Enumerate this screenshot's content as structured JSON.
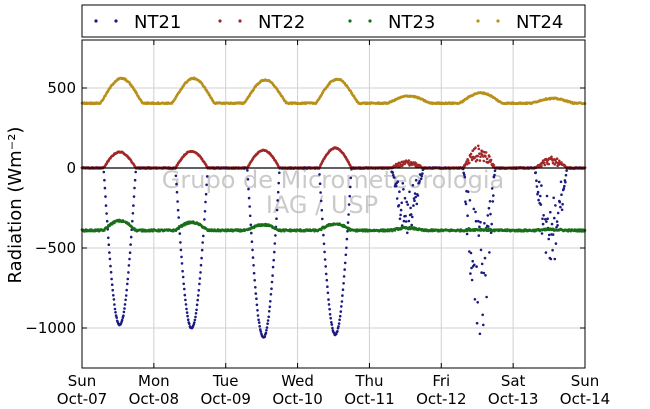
{
  "chart_data": {
    "type": "scatter",
    "ylabel": "Radiation (Wm⁻²)",
    "ylim": [
      -1250,
      800
    ],
    "yticks": [
      {
        "value": 500,
        "label": "500"
      },
      {
        "value": 0,
        "label": "0"
      },
      {
        "value": -500,
        "label": "−500"
      },
      {
        "value": -1000,
        "label": "−1000"
      }
    ],
    "xlim": [
      "2012-10-07",
      "2012-10-14"
    ],
    "xticks": [
      {
        "day": "Sun",
        "date": "Oct-07"
      },
      {
        "day": "Mon",
        "date": "Oct-08"
      },
      {
        "day": "Tue",
        "date": "Oct-09"
      },
      {
        "day": "Wed",
        "date": "Oct-10"
      },
      {
        "day": "Thu",
        "date": "Oct-11"
      },
      {
        "day": "Fri",
        "date": "Oct-12"
      },
      {
        "day": "Sat",
        "date": "Oct-13"
      },
      {
        "day": "Sun",
        "date": "Oct-14"
      }
    ],
    "grid": true,
    "legend_position": "top",
    "watermark": [
      "Grupo de Micrometeorologia",
      "IAG / USP"
    ],
    "series": [
      {
        "name": "NT21",
        "color": "#1a1a80",
        "baseline": 0,
        "daily_peak": [
          -980,
          -1000,
          -1060,
          -1040,
          -420,
          -1110,
          -640
        ]
      },
      {
        "name": "NT22",
        "color": "#a02828",
        "baseline": 0,
        "daily_peak": [
          100,
          105,
          110,
          125,
          50,
          140,
          70
        ]
      },
      {
        "name": "NT23",
        "color": "#1a6e1a",
        "baseline": -390,
        "daily_peak": [
          -330,
          -340,
          -355,
          -350,
          -375,
          -385,
          -385
        ]
      },
      {
        "name": "NT24",
        "color": "#b8901a",
        "baseline": 405,
        "daily_peak": [
          560,
          560,
          550,
          555,
          450,
          470,
          435
        ]
      }
    ]
  }
}
